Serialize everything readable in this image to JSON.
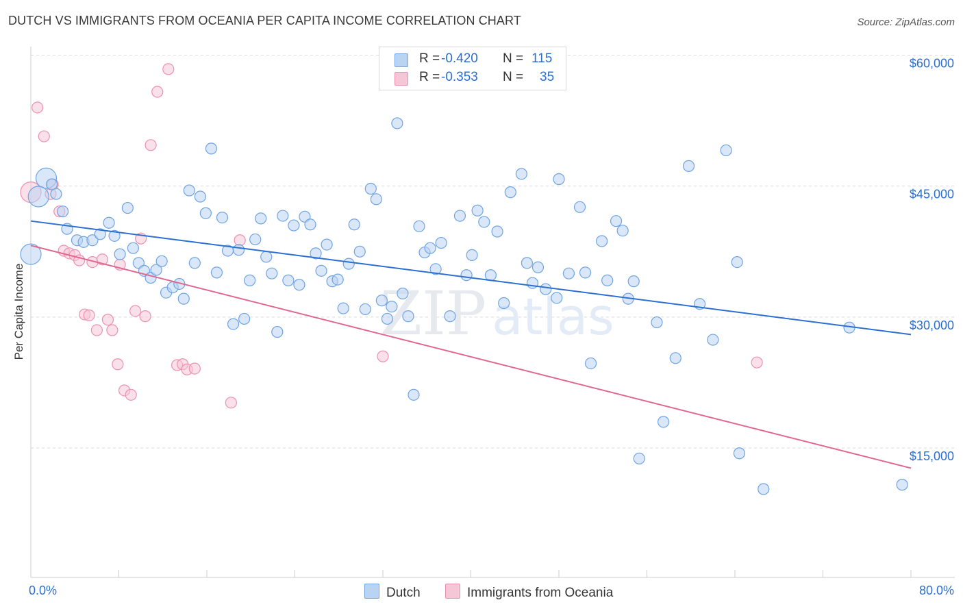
{
  "title": "DUTCH VS IMMIGRANTS FROM OCEANIA PER CAPITA INCOME CORRELATION CHART",
  "source": "Source: ZipAtlas.com",
  "watermark": {
    "zip": "ZIP",
    "atlas": "atlas"
  },
  "colors": {
    "dutch": "#6fa3e2",
    "dutch_fill": "#b9d3f3",
    "dutch_line": "#2b6fd1",
    "oceania": "#ec90b0",
    "oceania_fill": "#f6c6d7",
    "oceania_line": "#e0668f",
    "axis_text": "#2b6fd1",
    "grid": "#d9d9d9"
  },
  "legend_top": [
    {
      "r_label": "R =",
      "r_value": "-0.420",
      "n_label": "N =",
      "n_value": "115"
    },
    {
      "r_label": "R =",
      "r_value": "-0.353",
      "n_label": "N =",
      "n_value": "35"
    }
  ],
  "legend_bottom": {
    "dutch": "Dutch",
    "oceania": "Immigrants from Oceania"
  },
  "x_axis": {
    "min_label": "0.0%",
    "max_label": "80.0%"
  },
  "chart_data": {
    "type": "scatter",
    "title": "DUTCH VS IMMIGRANTS FROM OCEANIA PER CAPITA INCOME CORRELATION CHART",
    "xlabel": "",
    "ylabel": "Per Capita Income",
    "xlim": [
      0,
      80
    ],
    "ylim": [
      0,
      63000
    ],
    "yticks": [
      15000,
      30000,
      45000,
      60000
    ],
    "ytick_labels": [
      "$15,000",
      "$30,000",
      "$45,000",
      "$60,000"
    ],
    "series": [
      {
        "name": "Dutch",
        "trend": {
          "x": [
            0,
            80
          ],
          "y": [
            41000,
            28000
          ]
        },
        "points": [
          [
            0.0,
            37200,
            2
          ],
          [
            1.4,
            45900,
            2
          ],
          [
            0.7,
            43800,
            2
          ],
          [
            1.9,
            45200,
            1
          ],
          [
            2.3,
            44100,
            1
          ],
          [
            2.9,
            42100,
            1
          ],
          [
            3.3,
            40100,
            1
          ],
          [
            4.2,
            38800,
            1
          ],
          [
            4.8,
            38600,
            1
          ],
          [
            5.6,
            38800,
            1
          ],
          [
            6.3,
            39500,
            1
          ],
          [
            7.1,
            40800,
            1
          ],
          [
            7.6,
            39300,
            1
          ],
          [
            8.1,
            37200,
            1
          ],
          [
            8.8,
            42500,
            1
          ],
          [
            9.3,
            37900,
            1
          ],
          [
            9.8,
            36200,
            1
          ],
          [
            10.3,
            35300,
            1
          ],
          [
            10.9,
            34500,
            1
          ],
          [
            11.4,
            35400,
            1
          ],
          [
            11.9,
            36400,
            1
          ],
          [
            12.3,
            32800,
            1
          ],
          [
            12.9,
            33400,
            1
          ],
          [
            13.5,
            33800,
            1
          ],
          [
            13.9,
            32100,
            1
          ],
          [
            14.4,
            44500,
            1
          ],
          [
            14.9,
            36200,
            1
          ],
          [
            15.4,
            43800,
            1
          ],
          [
            15.9,
            41900,
            1
          ],
          [
            16.4,
            49300,
            1
          ],
          [
            16.9,
            35100,
            1
          ],
          [
            17.4,
            41400,
            1
          ],
          [
            17.9,
            37600,
            1
          ],
          [
            18.4,
            29200,
            1
          ],
          [
            18.9,
            37700,
            1
          ],
          [
            19.4,
            29800,
            1
          ],
          [
            19.9,
            34200,
            1
          ],
          [
            20.4,
            38900,
            1
          ],
          [
            20.9,
            41300,
            1
          ],
          [
            21.4,
            36900,
            1
          ],
          [
            21.9,
            35000,
            1
          ],
          [
            22.4,
            28300,
            1
          ],
          [
            22.9,
            41600,
            1
          ],
          [
            23.4,
            34200,
            1
          ],
          [
            23.9,
            40500,
            1
          ],
          [
            24.4,
            33700,
            1
          ],
          [
            24.9,
            41500,
            1
          ],
          [
            25.4,
            40600,
            1
          ],
          [
            25.9,
            37300,
            1
          ],
          [
            26.4,
            35300,
            1
          ],
          [
            26.9,
            38300,
            1
          ],
          [
            27.4,
            34100,
            1
          ],
          [
            27.9,
            34300,
            1
          ],
          [
            28.4,
            31000,
            1
          ],
          [
            28.9,
            36100,
            1
          ],
          [
            29.4,
            40600,
            1
          ],
          [
            29.9,
            37500,
            1
          ],
          [
            30.4,
            30900,
            1
          ],
          [
            30.9,
            44700,
            1
          ],
          [
            31.4,
            43500,
            1
          ],
          [
            31.9,
            31900,
            1
          ],
          [
            32.4,
            29800,
            1
          ],
          [
            32.8,
            31200,
            1
          ],
          [
            33.3,
            52200,
            1
          ],
          [
            33.8,
            32700,
            1
          ],
          [
            34.3,
            30100,
            1
          ],
          [
            34.8,
            21100,
            1
          ],
          [
            35.3,
            40400,
            1
          ],
          [
            35.8,
            37400,
            1
          ],
          [
            36.3,
            37900,
            1
          ],
          [
            36.8,
            35500,
            1
          ],
          [
            37.3,
            38500,
            1
          ],
          [
            38.1,
            30100,
            1
          ],
          [
            39.0,
            41600,
            1
          ],
          [
            39.6,
            34800,
            1
          ],
          [
            40.1,
            37100,
            1
          ],
          [
            40.6,
            42200,
            1
          ],
          [
            41.2,
            40900,
            1
          ],
          [
            41.8,
            34800,
            1
          ],
          [
            42.4,
            39800,
            1
          ],
          [
            43.0,
            31600,
            1
          ],
          [
            43.6,
            44300,
            1
          ],
          [
            44.6,
            46400,
            1
          ],
          [
            45.1,
            36200,
            1
          ],
          [
            45.6,
            33900,
            1
          ],
          [
            46.1,
            35700,
            1
          ],
          [
            46.8,
            33200,
            1
          ],
          [
            47.8,
            32200,
            1
          ],
          [
            48.0,
            45800,
            1
          ],
          [
            48.9,
            35000,
            1
          ],
          [
            49.9,
            42600,
            1
          ],
          [
            50.4,
            35100,
            1
          ],
          [
            50.9,
            24700,
            1
          ],
          [
            51.9,
            38700,
            1
          ],
          [
            52.4,
            34200,
            1
          ],
          [
            53.2,
            41000,
            1
          ],
          [
            53.8,
            39900,
            1
          ],
          [
            54.3,
            32100,
            1
          ],
          [
            54.8,
            34100,
            1
          ],
          [
            55.3,
            13800,
            1
          ],
          [
            56.9,
            29400,
            1
          ],
          [
            57.5,
            18000,
            1
          ],
          [
            58.6,
            25300,
            1
          ],
          [
            59.8,
            47300,
            1
          ],
          [
            60.8,
            31500,
            1
          ],
          [
            62.0,
            27400,
            1
          ],
          [
            63.2,
            49100,
            1
          ],
          [
            64.2,
            36300,
            1
          ],
          [
            64.4,
            14400,
            1
          ],
          [
            66.6,
            10300,
            1
          ],
          [
            74.4,
            28800,
            1
          ],
          [
            79.2,
            10800,
            1
          ]
        ]
      },
      {
        "name": "Immigrants from Oceania",
        "trend": {
          "x": [
            0,
            80
          ],
          "y": [
            38200,
            12700
          ]
        },
        "points": [
          [
            0.0,
            44300,
            2
          ],
          [
            0.6,
            54000,
            1
          ],
          [
            1.2,
            50700,
            1
          ],
          [
            1.8,
            44100,
            1
          ],
          [
            2.0,
            45200,
            1
          ],
          [
            2.6,
            42100,
            1
          ],
          [
            3.0,
            37600,
            1
          ],
          [
            3.5,
            37300,
            1
          ],
          [
            4.0,
            37100,
            1
          ],
          [
            4.4,
            36500,
            1
          ],
          [
            4.9,
            30300,
            1
          ],
          [
            5.3,
            30200,
            1
          ],
          [
            5.6,
            36300,
            1
          ],
          [
            6.0,
            28500,
            1
          ],
          [
            6.5,
            36600,
            1
          ],
          [
            7.0,
            29700,
            1
          ],
          [
            7.4,
            28500,
            1
          ],
          [
            7.9,
            24600,
            1
          ],
          [
            8.1,
            36000,
            1
          ],
          [
            8.5,
            21600,
            1
          ],
          [
            9.1,
            21100,
            1
          ],
          [
            9.5,
            30700,
            1
          ],
          [
            10.0,
            39000,
            1
          ],
          [
            10.4,
            30100,
            1
          ],
          [
            10.9,
            49700,
            1
          ],
          [
            11.5,
            55800,
            1
          ],
          [
            12.5,
            58400,
            1
          ],
          [
            13.3,
            24500,
            1
          ],
          [
            13.8,
            24600,
            1
          ],
          [
            14.2,
            24000,
            1
          ],
          [
            14.9,
            24100,
            1
          ],
          [
            18.2,
            20200,
            1
          ],
          [
            19.0,
            38800,
            1
          ],
          [
            32.0,
            25500,
            1
          ],
          [
            66.0,
            24800,
            1
          ]
        ]
      }
    ]
  }
}
